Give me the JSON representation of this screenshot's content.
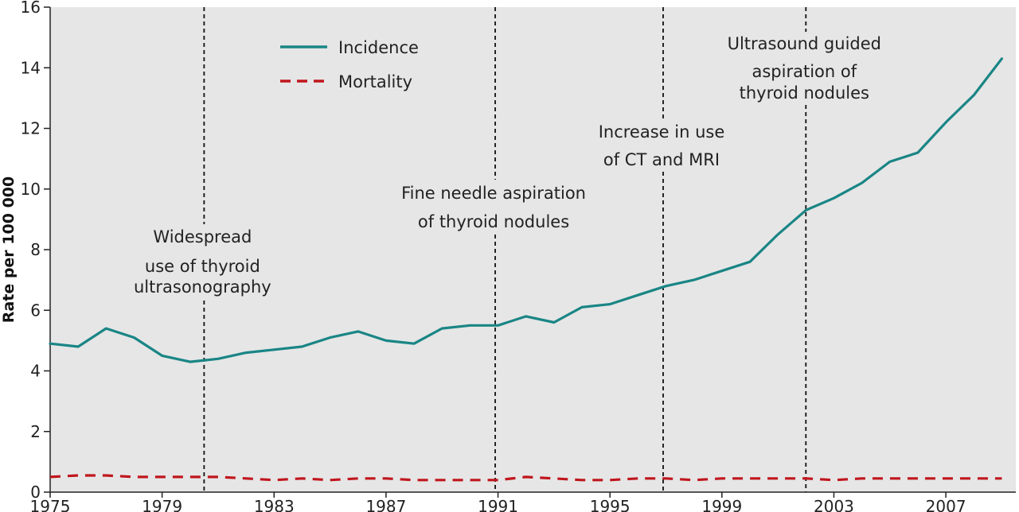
{
  "chart_data": {
    "type": "line",
    "title": "",
    "xlabel": "",
    "ylabel": "Rate per 100 000",
    "xlim": [
      1975,
      2009.5
    ],
    "ylim": [
      0,
      16
    ],
    "x_ticks": [
      1975,
      1979,
      1983,
      1987,
      1991,
      1995,
      1999,
      2003,
      2007
    ],
    "y_ticks": [
      0,
      2,
      4,
      6,
      8,
      10,
      12,
      14,
      16
    ],
    "grid": false,
    "legend": "top-left",
    "series": [
      {
        "name": "Incidence",
        "color": "#1a8585",
        "dash": "solid",
        "x": [
          1975,
          1976,
          1977,
          1978,
          1979,
          1980,
          1981,
          1982,
          1983,
          1984,
          1985,
          1986,
          1987,
          1988,
          1989,
          1990,
          1991,
          1992,
          1993,
          1994,
          1995,
          1996,
          1997,
          1998,
          1999,
          2000,
          2001,
          2002,
          2003,
          2004,
          2005,
          2006,
          2007,
          2008,
          2009
        ],
        "values": [
          4.9,
          4.8,
          5.4,
          5.1,
          4.5,
          4.3,
          4.4,
          4.6,
          4.7,
          4.8,
          5.1,
          5.3,
          5.0,
          4.9,
          5.4,
          5.5,
          5.5,
          5.8,
          5.6,
          6.1,
          6.2,
          6.5,
          6.8,
          7.0,
          7.3,
          7.6,
          8.5,
          9.3,
          9.7,
          10.2,
          10.9,
          11.2,
          12.2,
          13.1,
          14.3
        ]
      },
      {
        "name": "Mortality",
        "color": "#c0161d",
        "dash": "dashed",
        "x": [
          1975,
          1976,
          1977,
          1978,
          1979,
          1980,
          1981,
          1982,
          1983,
          1984,
          1985,
          1986,
          1987,
          1988,
          1989,
          1990,
          1991,
          1992,
          1993,
          1994,
          1995,
          1996,
          1997,
          1998,
          1999,
          2000,
          2001,
          2002,
          2003,
          2004,
          2005,
          2006,
          2007,
          2008,
          2009
        ],
        "values": [
          0.5,
          0.55,
          0.55,
          0.5,
          0.5,
          0.5,
          0.5,
          0.45,
          0.4,
          0.45,
          0.4,
          0.45,
          0.45,
          0.4,
          0.4,
          0.4,
          0.4,
          0.5,
          0.45,
          0.4,
          0.4,
          0.45,
          0.45,
          0.4,
          0.45,
          0.45,
          0.45,
          0.45,
          0.4,
          0.45,
          0.45,
          0.45,
          0.45,
          0.45,
          0.45
        ]
      }
    ],
    "markers": [
      {
        "x": 1980.5,
        "lines": [
          "Widespread",
          "use of thyroid",
          "ultrasonography"
        ]
      },
      {
        "x": 1990.9,
        "lines": [
          "Fine needle aspiration",
          "of thyroid nodules"
        ]
      },
      {
        "x": 1996.9,
        "lines": [
          "Increase in use",
          "of CT and MRI"
        ]
      },
      {
        "x": 2002,
        "lines": [
          "Ultrasound guided",
          "aspiration of",
          "thyroid nodules"
        ]
      }
    ]
  }
}
